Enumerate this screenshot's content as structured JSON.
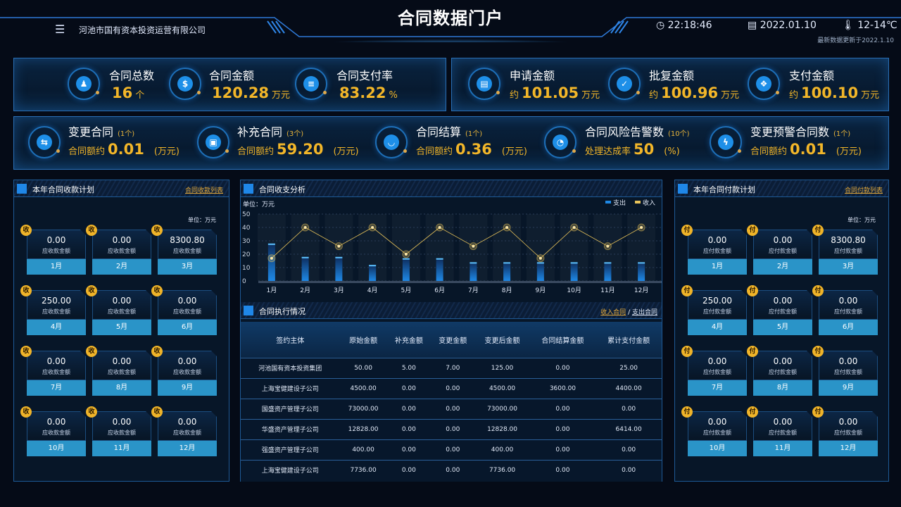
{
  "header": {
    "title": "合同数据门户",
    "company": "河池市国有资本投资运营有限公司",
    "time": "22:18:46",
    "date": "2022.01.10",
    "weather": "12-14℃",
    "updated": "最新数据更新于2022.1.10",
    "icons": [
      "menu-icon",
      "clock-icon",
      "calendar-icon",
      "thermometer-icon"
    ]
  },
  "kpi_row1": [
    {
      "label": "合同总数",
      "value": "16",
      "unit": "个",
      "icon": "stamp-icon"
    },
    {
      "label": "合同金额",
      "value": "120.28",
      "unit": "万元",
      "icon": "dollar-icon"
    },
    {
      "label": "合同支付率",
      "value": "83.22",
      "unit": "%",
      "icon": "database-icon"
    },
    {
      "label": "申请金额",
      "prefix": "约",
      "value": "101.05",
      "unit": "万元",
      "icon": "document-icon"
    },
    {
      "label": "批复金额",
      "prefix": "约",
      "value": "100.96",
      "unit": "万元",
      "icon": "approval-icon"
    },
    {
      "label": "支付金额",
      "prefix": "约",
      "value": "100.10",
      "unit": "万元",
      "icon": "cubes-icon"
    }
  ],
  "kpi_row2": [
    {
      "label": "变更合同",
      "count": "(1个)",
      "sub": "合同额约",
      "value": "0.01",
      "unit": "(万元)",
      "icon": "exchange-icon"
    },
    {
      "label": "补充合同",
      "count": "(3个)",
      "sub": "合同额约",
      "value": "59.20",
      "unit": "(万元)",
      "icon": "id-card-icon"
    },
    {
      "label": "合同结算",
      "count": "(1个)",
      "sub": "合同额约",
      "value": "0.36",
      "unit": "(万元)",
      "icon": "bowl-icon"
    },
    {
      "label": "合同风险告警数",
      "count": "(10个)",
      "sub": "处理达成率",
      "value": "50",
      "unit": "(%)",
      "icon": "pie-icon"
    },
    {
      "label": "变更预警合同数",
      "count": "(1个)",
      "sub": "合同额约",
      "value": "0.01",
      "unit": "(万元)",
      "icon": "alarm-icon"
    }
  ],
  "receive": {
    "title": "本年合同收款计划",
    "link": "合同收款列表",
    "unit": "单位：万元",
    "badge": "收",
    "sub": "应收款金额",
    "items": [
      {
        "v": "0.00",
        "m": "1月"
      },
      {
        "v": "0.00",
        "m": "2月"
      },
      {
        "v": "8300.80",
        "m": "3月"
      },
      {
        "v": "250.00",
        "m": "4月"
      },
      {
        "v": "0.00",
        "m": "5月"
      },
      {
        "v": "0.00",
        "m": "6月"
      },
      {
        "v": "0.00",
        "m": "7月"
      },
      {
        "v": "0.00",
        "m": "8月"
      },
      {
        "v": "0.00",
        "m": "9月"
      },
      {
        "v": "0.00",
        "m": "10月"
      },
      {
        "v": "0.00",
        "m": "11月"
      },
      {
        "v": "0.00",
        "m": "12月"
      }
    ]
  },
  "pay": {
    "title": "本年合同付款计划",
    "link": "合同付款列表",
    "unit": "单位：万元",
    "badge": "付",
    "sub": "应付款金额",
    "items": [
      {
        "v": "0.00",
        "m": "1月"
      },
      {
        "v": "0.00",
        "m": "2月"
      },
      {
        "v": "8300.80",
        "m": "3月"
      },
      {
        "v": "250.00",
        "m": "4月"
      },
      {
        "v": "0.00",
        "m": "5月"
      },
      {
        "v": "0.00",
        "m": "6月"
      },
      {
        "v": "0.00",
        "m": "7月"
      },
      {
        "v": "0.00",
        "m": "8月"
      },
      {
        "v": "0.00",
        "m": "9月"
      },
      {
        "v": "0.00",
        "m": "10月"
      },
      {
        "v": "0.00",
        "m": "11月"
      },
      {
        "v": "0.00",
        "m": "12月"
      }
    ]
  },
  "analysis": {
    "title": "合同收支分析",
    "unit": "单位：万元"
  },
  "chart_data": {
    "type": "bar",
    "categories": [
      "1月",
      "2月",
      "3月",
      "4月",
      "5月",
      "6月",
      "7月",
      "8月",
      "9月",
      "10月",
      "11月",
      "12月"
    ],
    "ylim": [
      0,
      50
    ],
    "yticks": [
      0,
      10,
      20,
      30,
      40,
      50
    ],
    "grid": true,
    "legend": "top-right",
    "series": [
      {
        "name": "支出",
        "type": "bar",
        "color": "#1e88e5",
        "values": [
          28,
          18,
          18,
          12,
          17,
          17,
          14,
          14,
          14,
          14,
          14,
          14
        ]
      },
      {
        "name": "收入",
        "type": "line",
        "color": "#e8c35a",
        "values": [
          17,
          40,
          26,
          40,
          20,
          40,
          26,
          40,
          17,
          40,
          26,
          40
        ]
      }
    ]
  },
  "execution": {
    "title": "合同执行情况",
    "link_income": "收入合同",
    "sep": "/",
    "link_expense": "支出合同",
    "columns": [
      "签约主体",
      "原始金额",
      "补充金额",
      "变更金额",
      "变更后金额",
      "合同结算金额",
      "累计支付金额"
    ],
    "rows": [
      [
        "河池国有资本投资集团",
        "50.00",
        "5.00",
        "7.00",
        "125.00",
        "0.00",
        "25.00"
      ],
      [
        "上海宝健建设子公司",
        "4500.00",
        "0.00",
        "0.00",
        "4500.00",
        "3600.00",
        "4400.00"
      ],
      [
        "国盛资产管理子公司",
        "73000.00",
        "0.00",
        "0.00",
        "73000.00",
        "0.00",
        "0.00"
      ],
      [
        "华盛资产管理子公司",
        "12828.00",
        "0.00",
        "0.00",
        "12828.00",
        "0.00",
        "6414.00"
      ],
      [
        "强盛资产管理子公司",
        "400.00",
        "0.00",
        "0.00",
        "400.00",
        "0.00",
        "0.00"
      ],
      [
        "上海宝健建设子公司",
        "7736.00",
        "0.00",
        "0.00",
        "7736.00",
        "0.00",
        "0.00"
      ]
    ]
  }
}
